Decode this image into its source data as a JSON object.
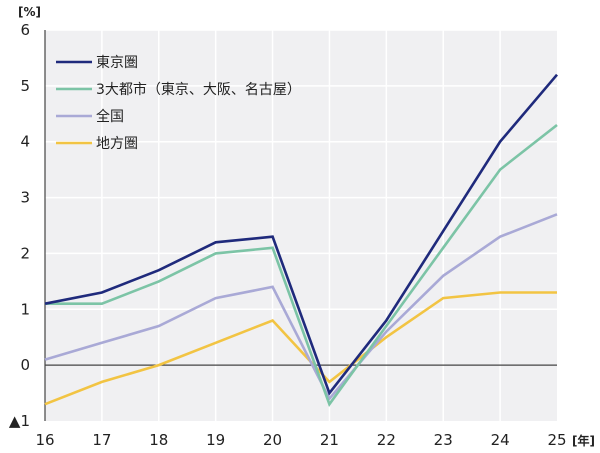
{
  "chart_data": {
    "type": "line",
    "title": "",
    "ylabel": "[%]",
    "xlabel": "[年]",
    "ylim": [
      -1,
      6
    ],
    "yticks": [
      {
        "value": 6,
        "label": "6"
      },
      {
        "value": 5,
        "label": "5"
      },
      {
        "value": 4,
        "label": "4"
      },
      {
        "value": 3,
        "label": "3"
      },
      {
        "value": 2,
        "label": "2"
      },
      {
        "value": 1,
        "label": "1"
      },
      {
        "value": 0,
        "label": "0"
      },
      {
        "value": -1,
        "label": "▲1"
      }
    ],
    "categories": [
      "16",
      "17",
      "18",
      "19",
      "20",
      "21",
      "22",
      "23",
      "24",
      "25"
    ],
    "grid": true,
    "legend_position": "upper-left",
    "series": [
      {
        "name": "東京圏",
        "color": "#1f2a7c",
        "values": [
          1.1,
          1.3,
          1.7,
          2.2,
          2.3,
          -0.5,
          0.8,
          2.4,
          4.0,
          5.2
        ]
      },
      {
        "name": "3大都市（東京、大阪、名古屋）",
        "color": "#7cc4a6",
        "values": [
          1.1,
          1.1,
          1.5,
          2.0,
          2.1,
          -0.7,
          0.7,
          2.1,
          3.5,
          4.3
        ]
      },
      {
        "name": "全国",
        "color": "#a9a9d6",
        "values": [
          0.1,
          0.4,
          0.7,
          1.2,
          1.4,
          -0.6,
          0.6,
          1.6,
          2.3,
          2.7
        ]
      },
      {
        "name": "地方圏",
        "color": "#f2c443",
        "values": [
          -0.7,
          -0.3,
          0.0,
          0.4,
          0.8,
          -0.3,
          0.5,
          1.2,
          1.3,
          1.3
        ]
      }
    ]
  },
  "axis": {
    "y_unit": "[%]",
    "x_unit": "[年]"
  },
  "colors": {
    "plot_background": "#f0f0f2",
    "grid": "#ffffff",
    "axis": "#444444"
  }
}
